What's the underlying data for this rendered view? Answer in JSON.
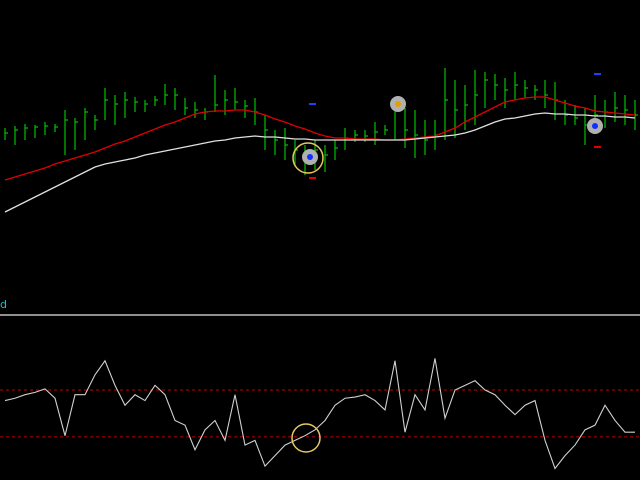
{
  "chart_data": [
    {
      "type": "ohlc",
      "categories": [
        null,
        null,
        null,
        null,
        null,
        null,
        null,
        null,
        null,
        null,
        null,
        null,
        null,
        null,
        null,
        null,
        null,
        null,
        null,
        null,
        null,
        null,
        null,
        null,
        null,
        null,
        null,
        null,
        null,
        null,
        null,
        null,
        null,
        null,
        null,
        null,
        null,
        null,
        null,
        null,
        null,
        null,
        null,
        null,
        null,
        null,
        null,
        null,
        null,
        null,
        null,
        null,
        null,
        null,
        null,
        null,
        null,
        null,
        null,
        null,
        null,
        null,
        null,
        null
      ],
      "high": [
        172,
        174,
        176,
        175,
        178,
        176,
        190,
        182,
        192,
        185,
        212,
        205,
        208,
        203,
        200,
        204,
        216,
        212,
        202,
        198,
        192,
        225,
        210,
        212,
        200,
        202,
        185,
        170,
        172,
        160,
        155,
        160,
        155,
        160,
        172,
        170,
        170,
        178,
        175,
        200,
        192,
        190,
        180,
        180,
        232,
        220,
        215,
        230,
        228,
        226,
        222,
        228,
        220,
        215,
        220,
        218,
        200,
        195,
        192,
        205,
        200,
        208,
        205,
        200
      ],
      "low": [
        160,
        155,
        160,
        162,
        165,
        168,
        145,
        150,
        160,
        170,
        180,
        175,
        182,
        188,
        188,
        194,
        195,
        190,
        185,
        182,
        180,
        188,
        185,
        190,
        182,
        175,
        150,
        145,
        140,
        135,
        125,
        130,
        128,
        140,
        150,
        158,
        158,
        155,
        165,
        160,
        152,
        142,
        145,
        150,
        160,
        162,
        170,
        175,
        192,
        200,
        192,
        200,
        202,
        200,
        192,
        180,
        175,
        175,
        155,
        170,
        172,
        178,
        175,
        170
      ],
      "close": [
        167,
        170,
        172,
        173,
        174,
        173,
        180,
        178,
        188,
        180,
        200,
        196,
        200,
        198,
        196,
        200,
        205,
        205,
        192,
        190,
        188,
        195,
        200,
        198,
        194,
        188,
        170,
        160,
        155,
        150,
        140,
        150,
        145,
        152,
        162,
        165,
        164,
        168,
        170,
        190,
        170,
        165,
        160,
        165,
        200,
        190,
        195,
        205,
        220,
        215,
        210,
        215,
        212,
        210,
        205,
        200,
        185,
        182,
        175,
        185,
        188,
        192,
        190,
        185
      ],
      "color": "#00c000",
      "ylim": [
        0,
        300
      ],
      "series": [
        {
          "color": "#e00000",
          "values": [
            120,
            123,
            126,
            129,
            132,
            136,
            139,
            142,
            145,
            148,
            152,
            156,
            159,
            163,
            167,
            171,
            175,
            178,
            182,
            186,
            188,
            189,
            189,
            190,
            190,
            188,
            185,
            181,
            178,
            174,
            171,
            167,
            164,
            162,
            162,
            161,
            161,
            161,
            160,
            160,
            161,
            162,
            163,
            164,
            168,
            172,
            178,
            183,
            188,
            193,
            198,
            200,
            202,
            203,
            203,
            200,
            197,
            194,
            192,
            189,
            188,
            187,
            186,
            185
          ]
        },
        {
          "color": "#e0e0e0",
          "values": [
            88,
            93,
            98,
            103,
            108,
            113,
            118,
            123,
            128,
            133,
            136,
            138,
            140,
            142,
            145,
            147,
            149,
            151,
            153,
            155,
            157,
            159,
            160,
            162,
            163,
            164,
            163,
            163,
            162,
            161,
            161,
            160,
            160,
            160,
            160,
            160,
            160,
            160,
            160,
            160,
            160,
            161,
            162,
            163,
            164,
            165,
            167,
            170,
            174,
            178,
            181,
            182,
            184,
            186,
            187,
            186,
            186,
            185,
            185,
            184,
            184,
            183,
            183,
            182
          ]
        }
      ]
    },
    {
      "type": "line",
      "label": "d",
      "categories": [
        null,
        null,
        null,
        null,
        null,
        null,
        null,
        null,
        null,
        null,
        null,
        null,
        null,
        null,
        null,
        null,
        null,
        null,
        null,
        null,
        null,
        null,
        null,
        null,
        null,
        null,
        null,
        null,
        null,
        null,
        null,
        null,
        null,
        null,
        null,
        null,
        null,
        null,
        null,
        null,
        null,
        null,
        null,
        null,
        null,
        null,
        null,
        null,
        null,
        null,
        null,
        null,
        null,
        null,
        null,
        null,
        null,
        null,
        null,
        null,
        null,
        null,
        null,
        null
      ],
      "values": [
        61,
        63,
        66,
        68,
        71,
        63,
        31,
        66,
        66,
        83,
        95,
        74,
        57,
        66,
        61,
        74,
        66,
        44,
        40,
        19,
        36,
        44,
        27,
        66,
        23,
        27,
        5,
        14,
        23,
        27,
        31,
        36,
        44,
        57,
        63,
        64,
        66,
        61,
        53,
        95,
        34,
        66,
        53,
        97,
        46,
        70,
        74,
        78,
        70,
        66,
        57,
        49,
        57,
        61,
        27,
        3,
        14,
        23,
        36,
        40,
        57,
        44,
        34,
        34
      ],
      "color": "#d0d0d0",
      "ylim": [
        0,
        100
      ],
      "levels": [
        70,
        30
      ],
      "level_color": "#c00000"
    }
  ]
}
